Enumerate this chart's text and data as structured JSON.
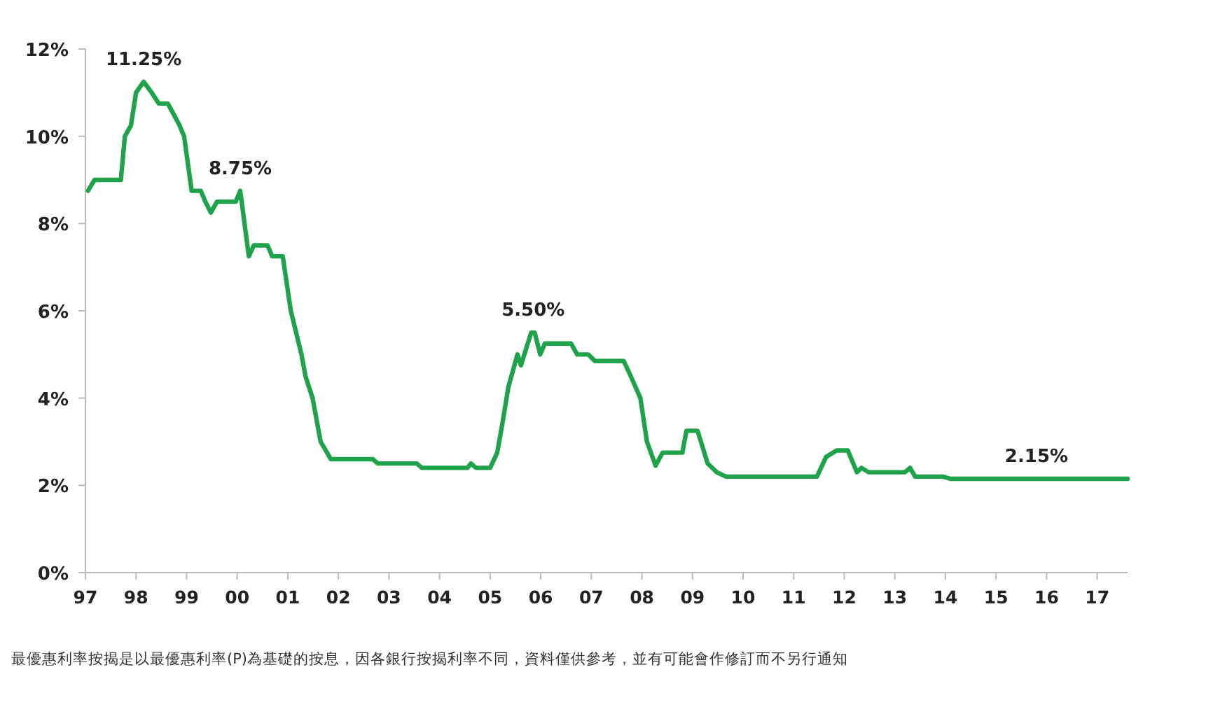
{
  "chart_data": {
    "type": "line",
    "x": [
      1997.05,
      1997.18,
      1997.7,
      1997.78,
      1997.9,
      1998.0,
      1998.15,
      1998.31,
      1998.45,
      1998.63,
      1998.86,
      1998.95,
      1999.1,
      1999.28,
      1999.37,
      1999.48,
      1999.6,
      1999.97,
      2000.06,
      2000.23,
      2000.33,
      2000.6,
      2000.69,
      2000.9,
      2001.06,
      2001.27,
      2001.35,
      2001.49,
      2001.65,
      2001.85,
      2002.68,
      2002.78,
      2003.55,
      2003.65,
      2004.55,
      2004.62,
      2004.72,
      2005.0,
      2005.14,
      2005.24,
      2005.36,
      2005.54,
      2005.61,
      2005.81,
      2005.88,
      2005.99,
      2006.08,
      2006.6,
      2006.72,
      2006.94,
      2007.07,
      2007.64,
      2007.78,
      2007.97,
      2008.1,
      2008.27,
      2008.41,
      2008.8,
      2008.88,
      2009.1,
      2009.3,
      2009.48,
      2009.66,
      2011.46,
      2011.64,
      2011.85,
      2012.07,
      2012.25,
      2012.34,
      2012.48,
      2013.2,
      2013.3,
      2013.4,
      2013.95,
      2014.1,
      2017.6
    ],
    "values": [
      8.75,
      9.0,
      9.0,
      10.0,
      10.25,
      11.0,
      11.25,
      11.0,
      10.75,
      10.75,
      10.25,
      10.0,
      8.75,
      8.75,
      8.5,
      8.25,
      8.5,
      8.5,
      8.75,
      7.25,
      7.5,
      7.5,
      7.25,
      7.25,
      6.0,
      5.0,
      4.5,
      4.0,
      3.0,
      2.6,
      2.6,
      2.5,
      2.5,
      2.4,
      2.4,
      2.5,
      2.4,
      2.4,
      2.75,
      3.4,
      4.25,
      5.0,
      4.75,
      5.5,
      5.5,
      5.0,
      5.25,
      5.25,
      5.0,
      5.0,
      4.85,
      4.85,
      4.5,
      4.0,
      3.0,
      2.45,
      2.75,
      2.75,
      3.25,
      3.25,
      2.5,
      2.3,
      2.2,
      2.2,
      2.65,
      2.8,
      2.8,
      2.3,
      2.4,
      2.3,
      2.3,
      2.4,
      2.2,
      2.2,
      2.15,
      2.15
    ],
    "color": "#1fa34a",
    "xlim": [
      1997,
      2017.6
    ],
    "xticks": [
      {
        "value": 1997,
        "label": "97"
      },
      {
        "value": 1998,
        "label": "98"
      },
      {
        "value": 1999,
        "label": "99"
      },
      {
        "value": 2000,
        "label": "00"
      },
      {
        "value": 2001,
        "label": "01"
      },
      {
        "value": 2002,
        "label": "02"
      },
      {
        "value": 2003,
        "label": "03"
      },
      {
        "value": 2004,
        "label": "04"
      },
      {
        "value": 2005,
        "label": "05"
      },
      {
        "value": 2006,
        "label": "06"
      },
      {
        "value": 2007,
        "label": "07"
      },
      {
        "value": 2008,
        "label": "08"
      },
      {
        "value": 2009,
        "label": "09"
      },
      {
        "value": 2010,
        "label": "10"
      },
      {
        "value": 2011,
        "label": "11"
      },
      {
        "value": 2012,
        "label": "12"
      },
      {
        "value": 2013,
        "label": "13"
      },
      {
        "value": 2014,
        "label": "14"
      },
      {
        "value": 2015,
        "label": "15"
      },
      {
        "value": 2016,
        "label": "16"
      },
      {
        "value": 2017,
        "label": "17"
      }
    ],
    "ylim": [
      0,
      12
    ],
    "yticks": [
      {
        "value": 0,
        "label": "0%"
      },
      {
        "value": 2,
        "label": "2%"
      },
      {
        "value": 4,
        "label": "4%"
      },
      {
        "value": 6,
        "label": "6%"
      },
      {
        "value": 8,
        "label": "8%"
      },
      {
        "value": 10,
        "label": "10%"
      },
      {
        "value": 12,
        "label": "12%"
      }
    ],
    "annotations": [
      {
        "text": "11.25%",
        "x": 1998.15,
        "y": 11.25
      },
      {
        "text": "8.75%",
        "x": 2000.06,
        "y": 8.75
      },
      {
        "text": "5.50%",
        "x": 2005.85,
        "y": 5.5
      },
      {
        "text": "2.15%",
        "x": 2015.8,
        "y": 2.15
      },
      "最優惠利率按揭是以最優惠利率(P)為基礎的按息，因各銀行按揭利率不同，資料僅供參考，並有可能會作修訂而不另行通知"
    ]
  }
}
